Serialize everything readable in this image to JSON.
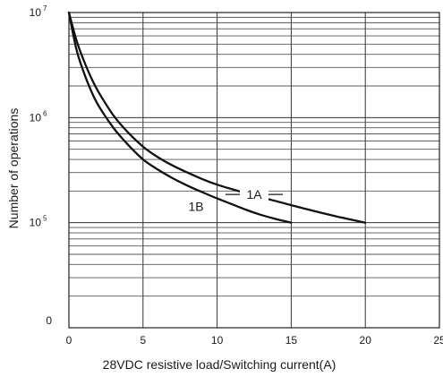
{
  "chart_data": {
    "type": "line",
    "title": "",
    "xlabel": "28VDC resistive load/Switching current(A)",
    "ylabel": "Number of operations",
    "xlim": [
      0,
      25
    ],
    "ylim": [
      10000,
      10000000
    ],
    "y_scale": "log",
    "grid": true,
    "x_ticks": [
      {
        "value": 0,
        "label": "0"
      },
      {
        "value": 5,
        "label": "5"
      },
      {
        "value": 10,
        "label": "10"
      },
      {
        "value": 15,
        "label": "15"
      },
      {
        "value": 20,
        "label": "20"
      },
      {
        "value": 25,
        "label": "25"
      }
    ],
    "y_ticks": [
      {
        "value": 10000,
        "base": "0",
        "exp": ""
      },
      {
        "value": 100000,
        "base": "10",
        "exp": "5"
      },
      {
        "value": 1000000,
        "base": "10",
        "exp": "6"
      },
      {
        "value": 10000000,
        "base": "10",
        "exp": "7"
      }
    ],
    "series": [
      {
        "name": "1A",
        "x": [
          0,
          0.5,
          1,
          1.5,
          2,
          3,
          4,
          5,
          6,
          7,
          8,
          9,
          10,
          12,
          14,
          16,
          18,
          20
        ],
        "y": [
          10000000,
          5500000,
          3500000,
          2400000,
          1750000,
          1050000,
          720000,
          530000,
          420000,
          350000,
          300000,
          260000,
          230000,
          190000,
          160000,
          135000,
          115000,
          100000
        ]
      },
      {
        "name": "1B",
        "x": [
          0,
          0.5,
          1,
          1.5,
          2,
          3,
          4,
          5,
          6,
          7,
          8,
          9,
          10,
          11,
          12,
          13,
          14,
          15
        ],
        "y": [
          10000000,
          4500000,
          2700000,
          1800000,
          1300000,
          800000,
          550000,
          400000,
          320000,
          265000,
          225000,
          195000,
          170000,
          150000,
          132000,
          118000,
          108000,
          100000
        ]
      }
    ],
    "annotations": [
      {
        "text": "1A",
        "series": "1A",
        "at_x": 12.5
      },
      {
        "text": "1B",
        "series": "1B",
        "at_x": 8.7
      }
    ]
  }
}
